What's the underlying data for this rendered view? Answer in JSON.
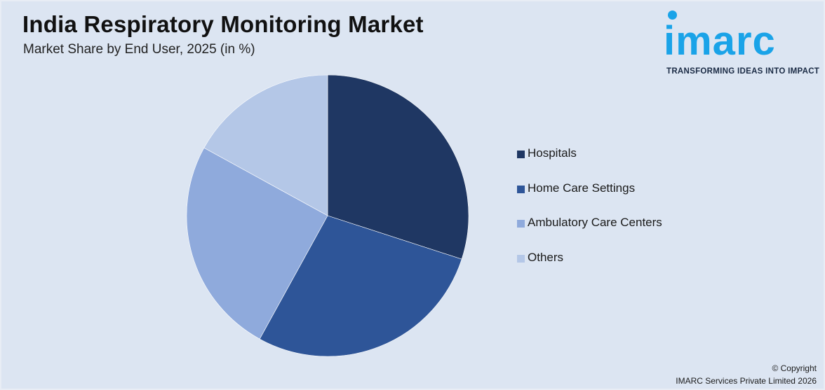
{
  "header": {
    "title": "India Respiratory Monitoring Market",
    "subtitle": "Market Share by End User, 2025 (in %)"
  },
  "logo": {
    "wordmark": "imarc",
    "tagline": "TRANSFORMING IDEAS INTO IMPACT",
    "color": "#1aa3e8"
  },
  "chart_data": {
    "type": "pie",
    "title": "India Respiratory Monitoring Market",
    "subtitle": "Market Share by End User, 2025 (in %)",
    "categories": [
      "Hospitals",
      "Home Care Settings",
      "Ambulatory Care Centers",
      "Others"
    ],
    "values": [
      30,
      28,
      25,
      17
    ],
    "colors": [
      "#1f3763",
      "#2e5598",
      "#8faadc",
      "#b4c7e7"
    ],
    "legend_position": "right"
  },
  "footer": {
    "copyright": "© Copyright",
    "company": "IMARC Services Private Limited 2026"
  }
}
